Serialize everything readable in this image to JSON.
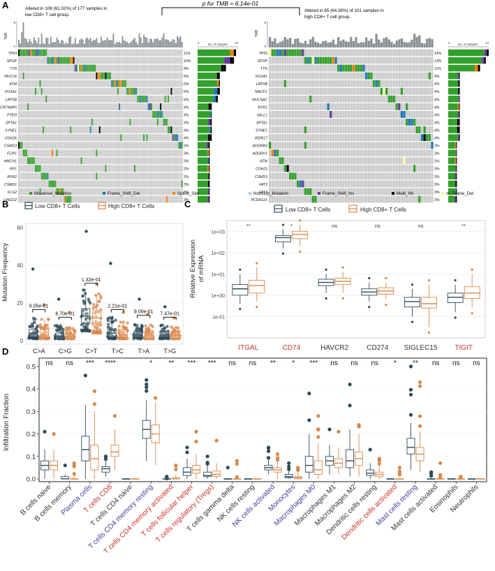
{
  "panel_labels": {
    "a": "A",
    "b": "B",
    "c": "C",
    "d": "D"
  },
  "chart_data": [
    {
      "id": "A",
      "type": "oncoplot",
      "comparison_label": "p for TMB = 6.14e-01",
      "legend": [
        "Missense_Mutation",
        "Frame_Shift_Del",
        "Splice_Site",
        "Nonstop_Mutation",
        "Frame_Shift_Ins",
        "Multi_Hit",
        "In_Frame_Del"
      ],
      "colors": {
        "Missense_Mutation": "#33a02c",
        "Frame_Shift_Del": "#1f78b4",
        "Splice_Site": "#ff7f00",
        "Nonstop_Mutation": "#a6cee3",
        "Frame_Shift_Ins": "#6a3d9a",
        "Multi_Hit": "#000000",
        "In_Frame_Del": "#ffff99",
        "background": "#cccccc",
        "tmb_bar": "#8a8e94"
      },
      "panels": [
        {
          "title_line1": "Altered in 108 (61.02%) of 177 samples in",
          "title_line2": "low CD8+ T cell group.",
          "tmb_label": "TMB",
          "tmb_max": "8",
          "tmb_min": "0",
          "side_axis_label": "No. of samples",
          "side_axis_min": "0",
          "side_axis_max": "20",
          "samples": 108,
          "genes": [
            "TP53",
            "SPOP",
            "TTN",
            "MUC16",
            "ATM",
            "FOXA1",
            "LRP1B",
            "CNTNAP5",
            "PTEN",
            "SPTA1",
            "SYNE1",
            "USH2A",
            "CSMD3",
            "FLIP1",
            "HMCN1",
            "RP1",
            "RYR2",
            "CSMD1",
            "FLG2",
            "LINGO2"
          ],
          "percents": [
            "11%",
            "10%",
            "8%",
            "6%",
            "6%",
            "6%",
            "6%",
            "4%",
            "4%",
            "4%",
            "4%",
            "4%",
            "3%",
            "3%",
            "3%",
            "3%",
            "3%",
            "3%",
            "3%",
            "3%"
          ],
          "counts": [
            19,
            18,
            14,
            11,
            11,
            11,
            10,
            7,
            7,
            7,
            7,
            7,
            6,
            6,
            6,
            6,
            6,
            6,
            6,
            6
          ]
        },
        {
          "title_line1": "Altered in 65 (64.36%) of 101 samples in",
          "title_line2": "high CD8+ T cell group.",
          "tmb_label": "TMB",
          "tmb_max": "8",
          "tmb_min": "0",
          "side_axis_label": "No. of samples",
          "side_axis_min": "0",
          "side_axis_max": "14",
          "samples": 65,
          "genes": [
            "TP53",
            "SPOP",
            "TTN",
            "FOXA1",
            "LRP1B",
            "MACF1",
            "MUC5AC",
            "RYR1",
            "SALL1",
            "SPTA1",
            "SYNE1",
            "WDR17",
            "ADGRB3",
            "ADGRV1",
            "ATM",
            "CDH23",
            "CSMD3",
            "FAT2",
            "FAT3",
            "PCDH11X"
          ],
          "percents": [
            "14%",
            "13%",
            "11%",
            "4%",
            "4%",
            "4%",
            "4%",
            "4%",
            "4%",
            "4%",
            "4%",
            "4%",
            "3%",
            "3%",
            "3%",
            "3%",
            "3%",
            "3%",
            "3%",
            "3%"
          ],
          "counts": [
            14,
            13,
            11,
            4,
            4,
            4,
            4,
            4,
            4,
            4,
            4,
            4,
            3,
            3,
            3,
            3,
            3,
            3,
            3,
            3
          ]
        }
      ]
    },
    {
      "id": "B",
      "type": "box",
      "legend": [
        "Low CD8+ T Cells",
        "High CD8+ T Cells"
      ],
      "colors": {
        "low": "#2f4a58",
        "high": "#d9874a"
      },
      "ylabel": "Mutation Frequency",
      "ylim": [
        0,
        60
      ],
      "yticks": [
        "0",
        "20",
        "40",
        "60"
      ],
      "categories": [
        "C>A",
        "C>G",
        "C>T",
        "T>C",
        "T>A",
        "T>G"
      ],
      "pvalues": [
        "6.05e-01",
        "6.70e-01",
        "1.32e-01",
        "2.21e-01",
        "9.00e-01",
        "7.47e-01"
      ],
      "series": [
        {
          "name": "Low CD8+ T Cells",
          "box": [
            [
              1,
              2,
              4,
              6,
              12
            ],
            [
              1,
              1,
              2,
              4,
              8
            ],
            [
              5,
              9,
              13,
              17,
              26
            ],
            [
              1,
              2,
              4,
              6,
              12
            ],
            [
              1,
              2,
              3,
              5,
              9
            ],
            [
              1,
              2,
              3,
              5,
              8
            ]
          ],
          "max_outlier": [
            38,
            22,
            58,
            41,
            22,
            18
          ]
        },
        {
          "name": "High CD8+ T Cells",
          "box": [
            [
              1,
              2,
              3,
              6,
              11
            ],
            [
              1,
              1,
              2,
              3,
              7
            ],
            [
              4,
              8,
              12,
              16,
              24
            ],
            [
              1,
              2,
              3,
              6,
              10
            ],
            [
              1,
              1,
              3,
              4,
              8
            ],
            [
              1,
              1,
              3,
              4,
              7
            ]
          ],
          "max_outlier": [
            19,
            15,
            30,
            15,
            14,
            12
          ]
        }
      ]
    },
    {
      "id": "C",
      "type": "box",
      "legend": [
        "Low CD8+ T Cells",
        "High CD8+ T Cells"
      ],
      "colors": {
        "low": "#2f4a58",
        "high": "#d9874a"
      },
      "ylabel_line1": "Relative Expression",
      "ylabel_line2": "of mRNA",
      "yscale": "log10",
      "ylim_log10": [
        -2,
        3.5
      ],
      "yticks": [
        "1e-01",
        "1e+00",
        "1e+01",
        "1e+02",
        "1e+03"
      ],
      "categories": [
        "ITGAL",
        "CD74",
        "HAVCR2",
        "CD274",
        "SIGLEC15",
        "TIGIT"
      ],
      "highlight": [
        true,
        true,
        false,
        false,
        false,
        true
      ],
      "significance": [
        "**",
        "*",
        "ns",
        "ns",
        "ns",
        "**"
      ],
      "series": [
        {
          "name": "Low CD8+ T Cells",
          "box_log10": [
            [
              -0.4,
              0.0,
              0.3,
              0.5,
              1.0
            ],
            [
              2.2,
              2.5,
              2.7,
              2.8,
              3.1
            ],
            [
              0.1,
              0.45,
              0.6,
              0.75,
              1.0
            ],
            [
              -0.3,
              0.0,
              0.15,
              0.3,
              0.6
            ],
            [
              -1.0,
              -0.55,
              -0.3,
              -0.1,
              0.3
            ],
            [
              -0.8,
              -0.35,
              -0.1,
              0.1,
              0.5
            ]
          ]
        },
        {
          "name": "High CD8+ T Cells",
          "box_log10": [
            [
              -0.3,
              0.1,
              0.45,
              0.7,
              1.3
            ],
            [
              2.3,
              2.65,
              2.85,
              3.0,
              3.3
            ],
            [
              0.1,
              0.5,
              0.65,
              0.8,
              1.1
            ],
            [
              -0.2,
              0.05,
              0.2,
              0.35,
              0.6
            ],
            [
              -1.5,
              -0.6,
              -0.4,
              -0.1,
              0.5
            ],
            [
              -0.6,
              -0.15,
              0.1,
              0.4,
              1.0
            ]
          ]
        }
      ]
    },
    {
      "id": "D",
      "type": "box",
      "colors": {
        "low": "#2f4a58",
        "high": "#d9874a",
        "label_black": "#333333",
        "label_blue": "#3f3f9a",
        "label_red": "#c8312b"
      },
      "ylabel": "Infiltration Fraction",
      "ylim": [
        0,
        0.5
      ],
      "yticks": [
        "0.0",
        "0.1",
        "0.2",
        "0.3",
        "0.4",
        "0.5"
      ],
      "categories": [
        "B cells naive",
        "B cells memory",
        "Plasma cells",
        "T cells CD8",
        "T cells CD4 naive",
        "T cells CD4 memory resting",
        "T cells CD4 memory activated",
        "T cells follicular helper",
        "T cells regulatory (Tregs)",
        "T cells gamma delta",
        "NK cells resting",
        "NK cells activated",
        "Monocytes",
        "Macrophages M0",
        "Macrophages M1",
        "Macrophages M2",
        "Dendritic cells resting",
        "Dendritic cells activated",
        "Mast cells resting",
        "Mast cells activated",
        "Eosinophils",
        "Neutrophils"
      ],
      "label_colors": [
        "black",
        "black",
        "blue",
        "red",
        "black",
        "blue",
        "red",
        "red",
        "red",
        "black",
        "black",
        "blue",
        "blue",
        "blue",
        "black",
        "black",
        "black",
        "red",
        "blue",
        "black",
        "black",
        "black"
      ],
      "significance": [
        "ns",
        "ns",
        "***",
        "****",
        "",
        "*",
        "**",
        "***",
        "***",
        "ns",
        "ns",
        "**",
        "*",
        "***",
        "ns",
        "ns",
        "ns",
        "*",
        "**",
        "ns",
        "ns",
        "ns"
      ],
      "series": [
        {
          "name": "Low CD8+ T Cells",
          "box": [
            [
              0.0,
              0.04,
              0.06,
              0.08,
              0.13
            ],
            [
              0.0,
              0.0,
              0.0,
              0.01,
              0.02
            ],
            [
              0.0,
              0.08,
              0.13,
              0.19,
              0.33
            ],
            [
              0.01,
              0.03,
              0.045,
              0.055,
              0.08
            ],
            [
              0.0,
              0.0,
              0.0,
              0.0,
              0.0
            ],
            [
              0.08,
              0.18,
              0.22,
              0.26,
              0.35
            ],
            [
              0.0,
              0.0,
              0.0,
              0.0,
              0.0
            ],
            [
              0.0,
              0.015,
              0.03,
              0.05,
              0.09
            ],
            [
              0.0,
              0.01,
              0.015,
              0.03,
              0.06
            ],
            [
              0.0,
              0.0,
              0.0,
              0.0,
              0.0
            ],
            [
              0.0,
              0.0,
              0.0,
              0.0,
              0.0
            ],
            [
              0.02,
              0.04,
              0.05,
              0.06,
              0.09
            ],
            [
              0.0,
              0.005,
              0.01,
              0.02,
              0.04
            ],
            [
              0.0,
              0.03,
              0.06,
              0.1,
              0.2
            ],
            [
              0.02,
              0.06,
              0.08,
              0.1,
              0.15
            ],
            [
              0.01,
              0.05,
              0.08,
              0.13,
              0.22
            ],
            [
              0.0,
              0.015,
              0.025,
              0.04,
              0.07
            ],
            [
              0.0,
              0.0,
              0.0,
              0.0,
              0.0
            ],
            [
              0.04,
              0.11,
              0.14,
              0.18,
              0.25
            ],
            [
              0.0,
              0.0,
              0.0,
              0.0,
              0.0
            ],
            [
              0.0,
              0.0,
              0.0,
              0.0,
              0.0
            ],
            [
              0.0,
              0.0,
              0.0,
              0.0,
              0.0
            ]
          ],
          "max_outlier": [
            0.21,
            0.06,
            0.46,
            0.1,
            0.0,
            0.44,
            0.01,
            0.14,
            0.1,
            0.05,
            0.0,
            0.14,
            0.07,
            0.38,
            0.22,
            0.42,
            0.13,
            0.0,
            0.5,
            0.03,
            0.005,
            0.0
          ]
        },
        {
          "name": "High CD8+ T Cells",
          "box": [
            [
              0.0,
              0.04,
              0.06,
              0.08,
              0.13
            ],
            [
              0.0,
              0.0,
              0.0,
              0.0,
              0.02
            ],
            [
              0.0,
              0.04,
              0.09,
              0.15,
              0.3
            ],
            [
              0.04,
              0.1,
              0.12,
              0.15,
              0.22
            ],
            [
              0.0,
              0.0,
              0.0,
              0.0,
              0.0
            ],
            [
              0.06,
              0.16,
              0.2,
              0.24,
              0.34
            ],
            [
              0.0,
              0.0,
              0.0,
              0.005,
              0.02
            ],
            [
              0.0,
              0.025,
              0.04,
              0.06,
              0.11
            ],
            [
              0.0,
              0.01,
              0.02,
              0.035,
              0.07
            ],
            [
              0.0,
              0.0,
              0.0,
              0.0,
              0.0
            ],
            [
              0.0,
              0.0,
              0.0,
              0.0,
              0.0
            ],
            [
              0.0,
              0.03,
              0.04,
              0.05,
              0.08
            ],
            [
              0.0,
              0.0,
              0.005,
              0.01,
              0.03
            ],
            [
              0.0,
              0.02,
              0.04,
              0.08,
              0.16
            ],
            [
              0.02,
              0.05,
              0.07,
              0.09,
              0.14
            ],
            [
              0.01,
              0.06,
              0.09,
              0.12,
              0.2
            ],
            [
              0.0,
              0.01,
              0.02,
              0.03,
              0.06
            ],
            [
              0.0,
              0.0,
              0.0,
              0.0,
              0.0
            ],
            [
              0.03,
              0.08,
              0.11,
              0.14,
              0.21
            ],
            [
              0.0,
              0.0,
              0.0,
              0.0,
              0.0
            ],
            [
              0.0,
              0.0,
              0.0,
              0.0,
              0.0
            ],
            [
              0.0,
              0.0,
              0.0,
              0.0,
              0.0
            ]
          ],
          "max_outlier": [
            0.2,
            0.07,
            0.39,
            0.28,
            0.0,
            0.36,
            0.06,
            0.21,
            0.17,
            0.08,
            0.0,
            0.11,
            0.05,
            0.28,
            0.21,
            0.24,
            0.09,
            0.05,
            0.43,
            0.07,
            0.01,
            0.0
          ]
        }
      ]
    }
  ]
}
